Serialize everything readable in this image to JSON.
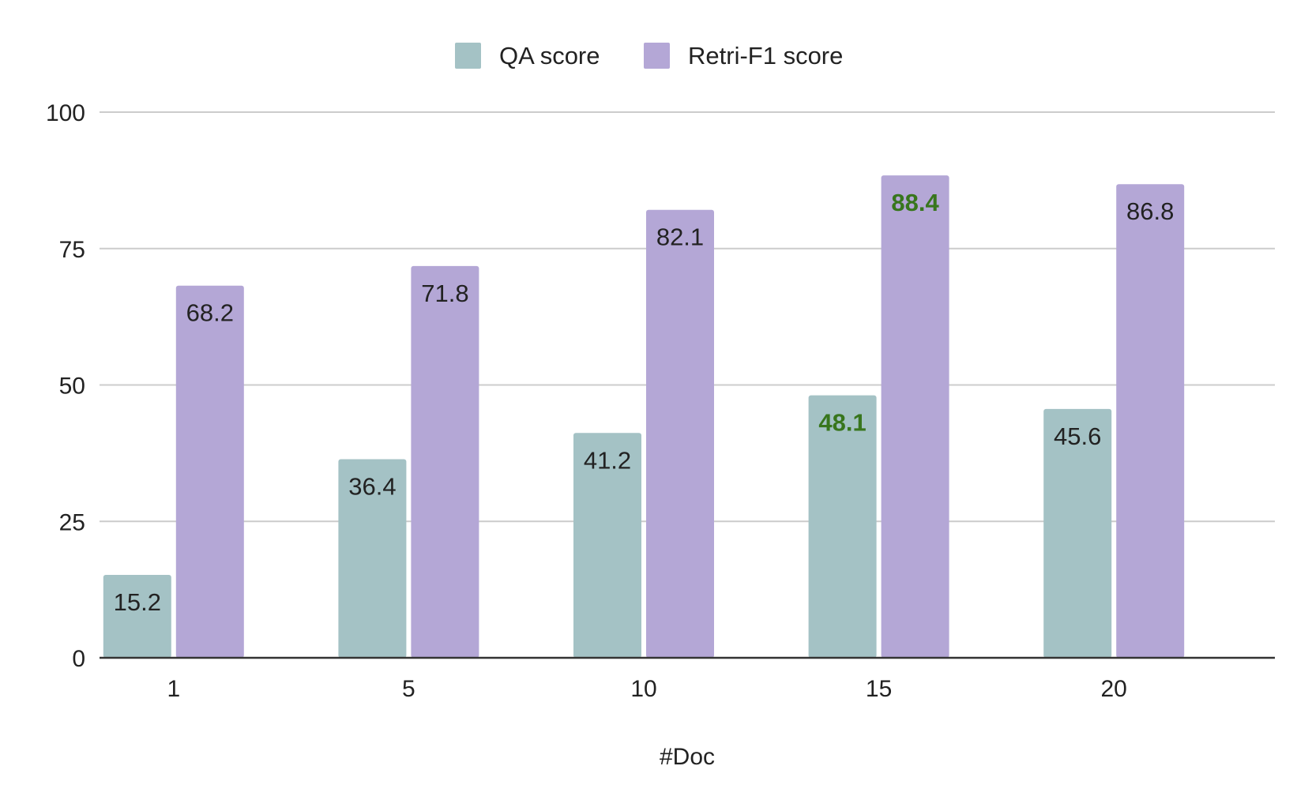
{
  "chart_data": {
    "type": "bar",
    "title": "",
    "xlabel": "#Doc",
    "ylabel": "",
    "categories": [
      "1",
      "5",
      "10",
      "15",
      "20"
    ],
    "series": [
      {
        "name": "QA score",
        "color": "#a4c2c5",
        "values": [
          15.2,
          36.4,
          41.2,
          48.1,
          45.6
        ],
        "highlight_index": 3
      },
      {
        "name": "Retri-F1 score",
        "color": "#b4a7d6",
        "values": [
          68.2,
          71.8,
          82.1,
          88.4,
          86.8
        ],
        "highlight_index": 3
      }
    ],
    "label_color": "#222222",
    "highlight_label_color": "#38761d",
    "ylim": [
      0,
      100
    ],
    "yticks": [
      0,
      25,
      50,
      75,
      100
    ],
    "grid": true,
    "legend_position": "top-center"
  }
}
